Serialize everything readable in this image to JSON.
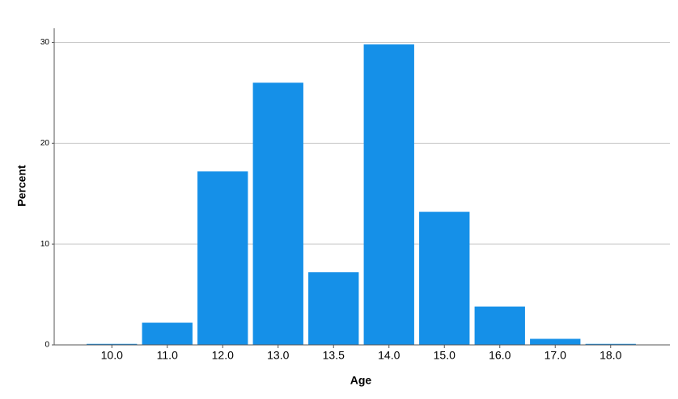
{
  "chart_data": {
    "type": "bar",
    "x_label": "Age",
    "y_label": "Percent",
    "categories": [
      "10.0",
      "11.0",
      "12.0",
      "13.0",
      "13.5",
      "14.0",
      "15.0",
      "16.0",
      "17.0",
      "18.0"
    ],
    "values": [
      0.1,
      2.2,
      17.2,
      26.0,
      7.2,
      29.8,
      13.2,
      3.8,
      0.6,
      0.1
    ],
    "color": "#1590e8",
    "ylim": [
      0,
      31.4
    ],
    "yticks": [
      0,
      10,
      20,
      30
    ],
    "grid": true
  }
}
